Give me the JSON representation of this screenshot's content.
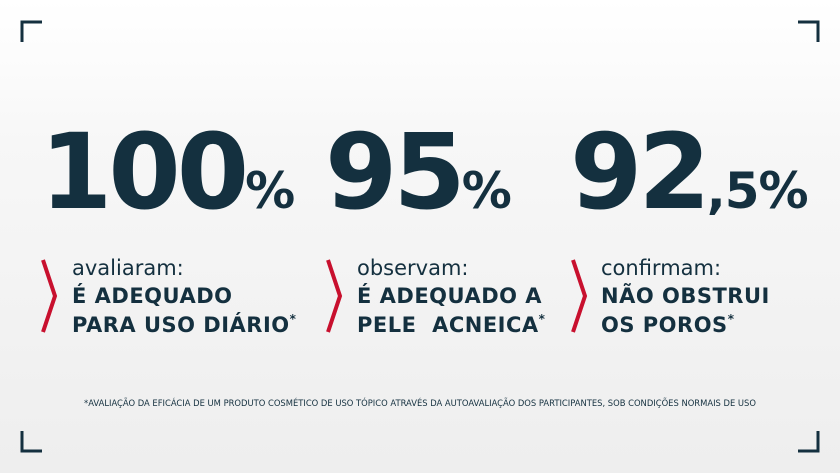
{
  "stats": [
    {
      "number": "100",
      "suffix": "%",
      "lead": "avaliaram:",
      "line1": "É ADEQUADO",
      "line2": "PARA USO DIÁRIO",
      "mark": "*"
    },
    {
      "number": "95",
      "suffix": "%",
      "lead": "observam:",
      "line1": "É ADEQUADO A",
      "line2": "PELE  ACNEICA",
      "mark": "*"
    },
    {
      "number": "92",
      "suffix": ",5%",
      "lead": "confirmam:",
      "line1": "NÃO OBSTRUI",
      "line2": "OS POROS",
      "mark": "*"
    }
  ],
  "footnote": "*AVALIAÇÃO DA EFICÁCIA DE UM PRODUTO COSMÉTICO DE USO TÓPICO ATRAVÉS DA AUTOAVALIAÇÃO DOS PARTICIPANTES, SOB CONDIÇÕES NORMAIS DE USO"
}
